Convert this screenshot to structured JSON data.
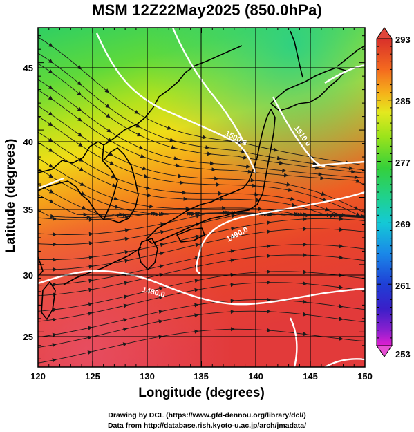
{
  "title": "MSM 12Z22May2025 (850.0hPa)",
  "map": {
    "x_axis_label": "Longitude (degrees)",
    "y_axis_label": "Latitude  (degrees)",
    "lon_ticks": [
      "120",
      "125",
      "130",
      "135",
      "140",
      "145",
      "150"
    ],
    "lat_ticks": [
      "25",
      "30",
      "35",
      "40",
      "45"
    ],
    "lon_range": [
      120,
      150
    ],
    "lat_range": [
      22.4,
      47.6
    ],
    "field": "temperature shading with wind streamlines",
    "contour_labels": [
      "1480.0",
      "1490.0",
      "1500.0",
      "1510.0"
    ],
    "grid": true
  },
  "colorbar": {
    "labels": [
      "293",
      "285",
      "277",
      "269",
      "261",
      "253"
    ],
    "range": [
      253,
      293
    ],
    "orientation": "vertical",
    "colors_top_to_bottom": [
      "#d9302a",
      "#f46a1f",
      "#f5b41a",
      "#e3e81f",
      "#9be31b",
      "#35d03a",
      "#1fd190",
      "#14c9d6",
      "#1a88e8",
      "#1f3fd6",
      "#3a1fc8",
      "#8b1fcf",
      "#e01fd0"
    ]
  },
  "credits": {
    "line1": "Drawing by DCL (https://www.gfd-dennou.org/library/dcl/)",
    "line2": "Data from http://database.rish.kyoto-u.ac.jp/arch/jmadata/"
  }
}
